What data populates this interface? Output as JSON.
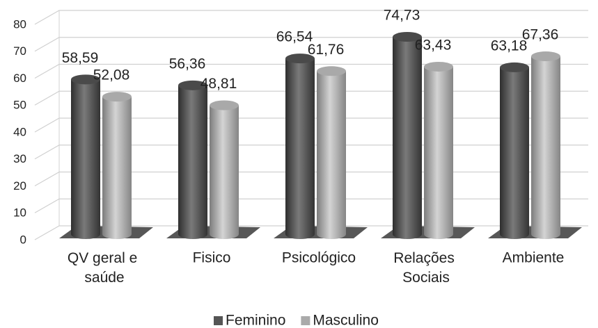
{
  "chart_data": {
    "type": "bar3d",
    "categories": [
      "QV geral e saúde",
      "Fisico",
      "Psicológico",
      "Relações Sociais",
      "Ambiente"
    ],
    "series": [
      {
        "name": "Feminino",
        "color": "#555555",
        "values": [
          58.59,
          56.36,
          66.54,
          74.73,
          63.18
        ],
        "value_labels": [
          "58,59",
          "56,36",
          "66,54",
          "74,73",
          "63,18"
        ]
      },
      {
        "name": "Masculino",
        "color": "#aaaaaa",
        "values": [
          52.08,
          48.81,
          61.76,
          63.43,
          67.36
        ],
        "value_labels": [
          "52,08",
          "48,81",
          "61,76",
          "63,43",
          "67,36"
        ]
      }
    ],
    "ylim": [
      0,
      80
    ],
    "yticks": [
      0,
      10,
      20,
      30,
      40,
      50,
      60,
      70,
      80
    ],
    "grid": true,
    "legend": "bottom"
  }
}
